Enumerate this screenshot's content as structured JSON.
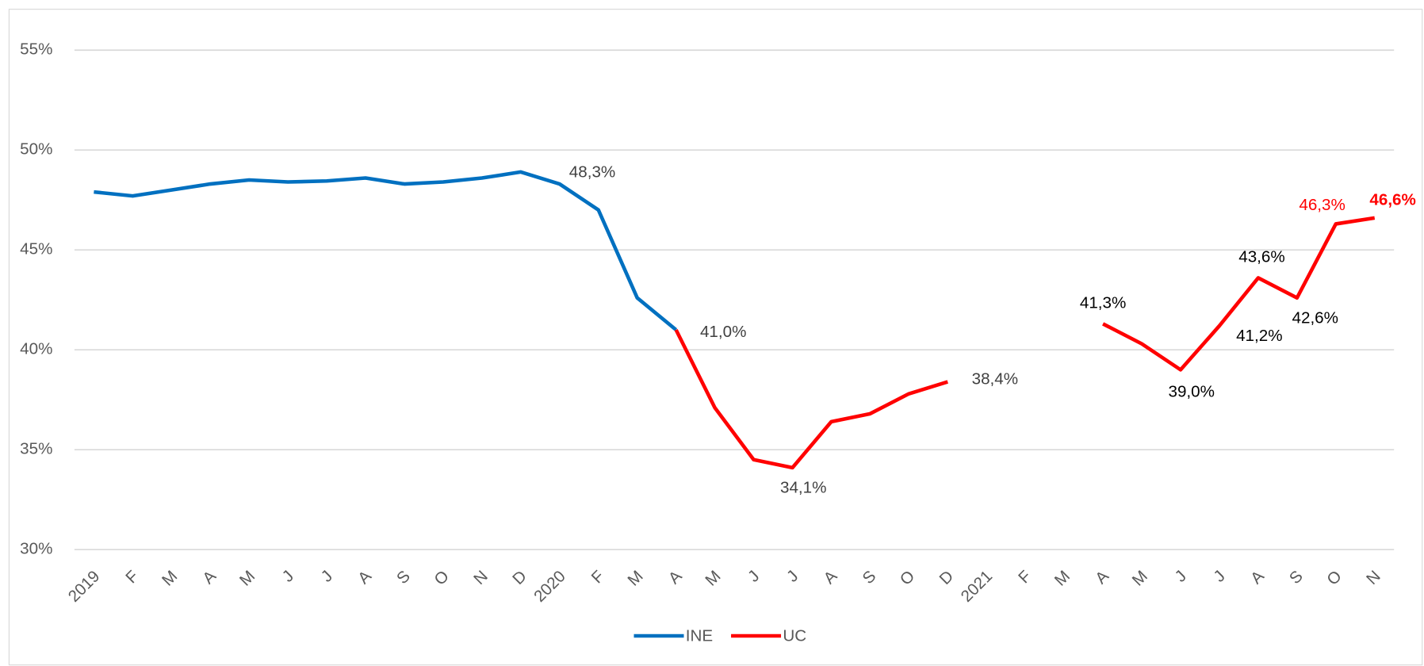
{
  "chart_data": {
    "type": "line",
    "categories": [
      "2019",
      "F",
      "M",
      "A",
      "M",
      "J",
      "J",
      "A",
      "S",
      "O",
      "N",
      "D",
      "2020",
      "F",
      "M",
      "A",
      "M",
      "J",
      "J",
      "A",
      "S",
      "O",
      "D",
      "2021",
      "F",
      "M",
      "A",
      "M",
      "J",
      "J",
      "A",
      "S",
      "O",
      "N"
    ],
    "series": [
      {
        "name": "INE",
        "color": "#0070c0",
        "values": [
          47.9,
          47.7,
          48.0,
          48.3,
          48.5,
          48.4,
          48.45,
          48.6,
          48.3,
          48.4,
          48.6,
          48.9,
          48.3,
          47.0,
          42.6,
          41.0,
          null,
          null,
          null,
          null,
          null,
          null,
          null,
          null,
          null,
          null,
          null,
          null,
          null,
          null,
          null,
          null,
          null,
          null
        ],
        "value_labels": [
          null,
          null,
          null,
          null,
          null,
          null,
          null,
          null,
          null,
          null,
          null,
          null,
          "48,3%",
          null,
          null,
          null,
          null,
          null,
          null,
          null,
          null,
          null,
          null,
          null,
          null,
          null,
          null,
          null,
          null,
          null,
          null,
          null,
          null,
          null
        ]
      },
      {
        "name": "UC",
        "color": "#ff0000",
        "values": [
          null,
          null,
          null,
          null,
          null,
          null,
          null,
          null,
          null,
          null,
          null,
          null,
          null,
          null,
          null,
          41.0,
          37.1,
          34.5,
          34.1,
          36.4,
          36.8,
          37.8,
          38.4,
          null,
          null,
          null,
          41.3,
          40.3,
          39.0,
          41.2,
          43.6,
          42.6,
          46.3,
          46.6
        ],
        "value_labels": [
          null,
          null,
          null,
          null,
          null,
          null,
          null,
          null,
          null,
          null,
          null,
          null,
          null,
          null,
          null,
          "41,0%",
          null,
          null,
          "34,1%",
          null,
          null,
          null,
          "38,4%",
          null,
          null,
          null,
          "41,3%",
          null,
          "39,0%",
          "41,2%",
          "43,6%",
          "42,6%",
          "46,3%",
          "46,6%"
        ]
      }
    ],
    "ylim": [
      30,
      55
    ],
    "yticks": [
      {
        "value": 30,
        "label": "30%"
      },
      {
        "value": 35,
        "label": "35%"
      },
      {
        "value": 40,
        "label": "40%"
      },
      {
        "value": 45,
        "label": "45%"
      },
      {
        "value": 50,
        "label": "50%"
      },
      {
        "value": 55,
        "label": "55%"
      }
    ],
    "grid": true,
    "legend": "bottom"
  }
}
